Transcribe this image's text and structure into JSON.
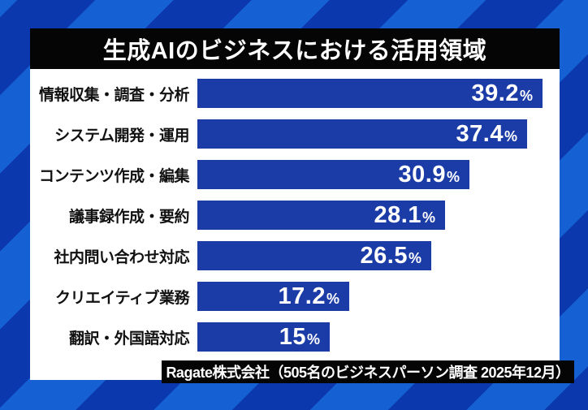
{
  "title": "生成AIのビジネスにおける活用領域",
  "source": "Ragate株式会社（505名のビジネスパーソン調査 2025年12月）",
  "chart_data": {
    "type": "bar",
    "orientation": "horizontal",
    "title": "生成AIのビジネスにおける活用領域",
    "categories": [
      "情報収集・調査・分析",
      "システム開発・運用",
      "コンテンツ作成・編集",
      "議事録作成・要約",
      "社内問い合わせ対応",
      "クリエイティブ業務",
      "翻訳・外国語対応"
    ],
    "values": [
      39.2,
      37.4,
      30.9,
      28.1,
      26.5,
      17.2,
      15
    ],
    "value_labels": [
      "39.2",
      "37.4",
      "30.9",
      "28.1",
      "26.5",
      "17.2",
      "15"
    ],
    "unit": "%",
    "xlabel": "",
    "ylabel": "",
    "xlim": [
      0,
      42
    ],
    "grid": false,
    "legend": "none",
    "source": "Ragate株式会社（505名のビジネスパーソン調査 2025年12月）",
    "colors": {
      "bar": "#1b3ca6",
      "bar_text": "#ffffff",
      "label_text": "#111111",
      "card_bg": "#ffffff",
      "title_bg": "#050505",
      "title_text": "#ffffff",
      "stripe_light": "#1561d3",
      "stripe_dark": "#0c38ae"
    }
  }
}
